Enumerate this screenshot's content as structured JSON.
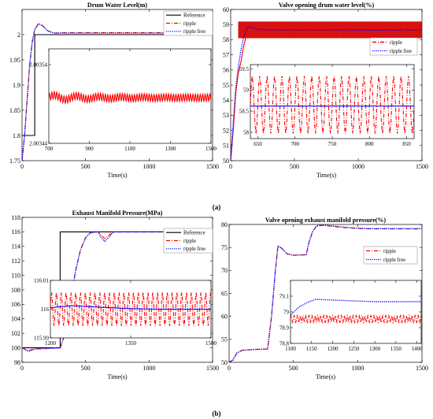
{
  "colors": {
    "reference": "#000000",
    "ripple": "#ff0000",
    "ripple_free": "#0000ff",
    "axis": "#000000"
  },
  "captions": {
    "a": "(a)",
    "b": "(b)"
  },
  "chart_data": [
    {
      "id": "a1",
      "type": "line",
      "title": "Drum Water Level(m)",
      "xlabel": "Time(s)",
      "ylabel": "",
      "xlim": [
        0,
        1500
      ],
      "ylim": [
        1.75,
        2.05
      ],
      "xticks": [
        0,
        500,
        1000,
        1500
      ],
      "yticks": [
        1.75,
        1.8,
        1.85,
        1.9,
        1.95,
        2.0
      ],
      "legend_position": "top-right",
      "series": [
        {
          "name": "Reference",
          "color_key": "reference",
          "style": "solid",
          "points": [
            [
              0,
              1.8
            ],
            [
              100,
              1.8
            ],
            [
              100,
              2.0
            ],
            [
              1500,
              2.0
            ]
          ]
        },
        {
          "name": "ripple",
          "color_key": "ripple",
          "style": "dashdot",
          "points": [
            [
              0,
              1.75
            ],
            [
              20,
              1.8
            ],
            [
              40,
              1.87
            ],
            [
              60,
              1.94
            ],
            [
              80,
              1.985
            ],
            [
              100,
              2.01
            ],
            [
              130,
              2.022
            ],
            [
              160,
              2.018
            ],
            [
              200,
              2.008
            ],
            [
              250,
              2.003
            ],
            [
              300,
              2.004
            ],
            [
              400,
              2.004
            ],
            [
              600,
              2.004
            ],
            [
              800,
              2.004
            ],
            [
              1000,
              2.004
            ],
            [
              1500,
              2.004
            ]
          ]
        },
        {
          "name": "ripple free",
          "color_key": "ripple_free",
          "style": "dotted",
          "points": [
            [
              0,
              1.75
            ],
            [
              20,
              1.8
            ],
            [
              40,
              1.87
            ],
            [
              60,
              1.94
            ],
            [
              80,
              1.985
            ],
            [
              100,
              2.01
            ],
            [
              130,
              2.022
            ],
            [
              160,
              2.018
            ],
            [
              200,
              2.008
            ],
            [
              250,
              2.003
            ],
            [
              300,
              2.003
            ],
            [
              400,
              2.003
            ],
            [
              600,
              2.003
            ],
            [
              800,
              2.003
            ],
            [
              1000,
              2.003
            ],
            [
              1500,
              2.003
            ]
          ]
        }
      ],
      "inset": {
        "xlim": [
          700,
          1500
        ],
        "ylim": [
          2.00344,
          2.00356
        ],
        "xticks": [
          700,
          900,
          1100,
          1300,
          1500
        ],
        "yticks": [
          2.00344,
          2.00354
        ],
        "yticklabels": [
          "2.00344",
          "2.00354"
        ],
        "series": [
          {
            "name": "ripple",
            "color_key": "ripple",
            "style": "solid",
            "ripple": {
              "x0": 700,
              "x1": 1500,
              "base": 2.003498,
              "amplitude": 4.5e-06,
              "period": 12,
              "decay_amp": 3.5e-06,
              "decay_period": 110,
              "decay_tau": 280
            }
          }
        ]
      }
    },
    {
      "id": "a2",
      "type": "line",
      "title": "Valve opening drum water level(%)",
      "xlabel": "Time(s)",
      "ylabel": "",
      "xlim": [
        0,
        1500
      ],
      "ylim": [
        50,
        60
      ],
      "xticks": [
        0,
        500,
        1000,
        1500
      ],
      "yticks": [
        50,
        51,
        52,
        53,
        54,
        55,
        56,
        57,
        58,
        59,
        60
      ],
      "legend_position": "top-right",
      "series": [
        {
          "name": "ripple",
          "color_key": "ripple",
          "style": "band",
          "points": [
            [
              0,
              50
            ],
            [
              20,
              52
            ],
            [
              40,
              54.5
            ],
            [
              60,
              55.8
            ],
            [
              80,
              56.5
            ],
            [
              100,
              57.5
            ],
            [
              120,
              58.2
            ],
            [
              140,
              58.7
            ],
            [
              1500,
              58.7
            ]
          ],
          "band": {
            "x0": 60,
            "x1": 1500,
            "lo": 58.1,
            "hi": 59.2
          }
        },
        {
          "name": "ripple free",
          "color_key": "ripple_free",
          "style": "dotted",
          "points": [
            [
              0,
              50
            ],
            [
              20,
              52.5
            ],
            [
              40,
              54.8
            ],
            [
              60,
              56.2
            ],
            [
              80,
              57.3
            ],
            [
              100,
              58.1
            ],
            [
              130,
              58.8
            ],
            [
              160,
              58.85
            ],
            [
              200,
              58.7
            ],
            [
              300,
              58.65
            ],
            [
              1500,
              58.65
            ]
          ]
        }
      ],
      "inset": {
        "xlim": [
          640,
          860
        ],
        "ylim": [
          57.85,
          59.6
        ],
        "xticks": [
          650,
          700,
          750,
          800,
          850
        ],
        "yticks": [
          58,
          58.5,
          59,
          59.5
        ],
        "yticklabels": [
          "58",
          "58.5",
          "59",
          "59.5"
        ],
        "series": [
          {
            "name": "ripple",
            "color_key": "ripple",
            "style": "dashdot",
            "ripple": {
              "x0": 640,
              "x1": 860,
              "base": 58.65,
              "amplitude": 0.68,
              "period": 10,
              "decay_amp": 0,
              "decay_period": 1,
              "decay_tau": 1
            }
          },
          {
            "name": "ripple free",
            "color_key": "ripple_free",
            "style": "solid",
            "points": [
              [
                640,
                58.62
              ],
              [
                860,
                58.62
              ]
            ]
          }
        ]
      }
    },
    {
      "id": "b1",
      "type": "line",
      "title": "Exhaust Manifold Pressure(MPa)",
      "xlabel": "Time(s)",
      "ylabel": "",
      "xlim": [
        0,
        1500
      ],
      "ylim": [
        98,
        118
      ],
      "xticks": [
        0,
        500,
        1000,
        1500
      ],
      "yticks": [
        98,
        100,
        102,
        104,
        106,
        108,
        110,
        112,
        114,
        116,
        118
      ],
      "legend_position": "top-right",
      "series": [
        {
          "name": "Reference",
          "color_key": "reference",
          "style": "solid",
          "points": [
            [
              0,
              100
            ],
            [
              300,
              100
            ],
            [
              300,
              116
            ],
            [
              1500,
              116
            ]
          ]
        },
        {
          "name": "ripple",
          "color_key": "ripple",
          "style": "dashdot",
          "points": [
            [
              0,
              100
            ],
            [
              50,
              99.6
            ],
            [
              100,
              99.9
            ],
            [
              300,
              100
            ],
            [
              340,
              102
            ],
            [
              380,
              106
            ],
            [
              420,
              110.5
            ],
            [
              460,
              113.5
            ],
            [
              500,
              115.2
            ],
            [
              540,
              115.9
            ],
            [
              600,
              116
            ],
            [
              620,
              115.6
            ],
            [
              650,
              115.1
            ],
            [
              680,
              115.5
            ],
            [
              720,
              116
            ],
            [
              1500,
              116
            ]
          ]
        },
        {
          "name": "ripple free",
          "color_key": "ripple_free",
          "style": "dotted",
          "points": [
            [
              0,
              100
            ],
            [
              50,
              99.5
            ],
            [
              100,
              99.8
            ],
            [
              300,
              100
            ],
            [
              340,
              102
            ],
            [
              380,
              106
            ],
            [
              420,
              110.5
            ],
            [
              460,
              113.5
            ],
            [
              500,
              115.2
            ],
            [
              540,
              115.9
            ],
            [
              600,
              116
            ],
            [
              620,
              115.3
            ],
            [
              650,
              114.7
            ],
            [
              680,
              115.2
            ],
            [
              720,
              116
            ],
            [
              1500,
              116
            ]
          ]
        }
      ],
      "inset": {
        "xlim": [
          1200,
          1500
        ],
        "ylim": [
          115.99,
          116.01
        ],
        "xticks": [
          1200,
          1350,
          1500
        ],
        "yticks": [
          115.99,
          116,
          116.01
        ],
        "yticklabels": [
          "115.99",
          "116",
          "116.01"
        ],
        "series": [
          {
            "name": "ripple",
            "color_key": "ripple",
            "style": "dashdot",
            "ripple": {
              "x0": 1200,
              "x1": 1500,
              "base": 116.0,
              "amplitude": 0.0058,
              "period": 9,
              "decay_amp": 0,
              "decay_period": 1,
              "decay_tau": 1
            }
          },
          {
            "name": "ripple free",
            "color_key": "ripple_free",
            "style": "solid",
            "points": [
              [
                1200,
                116.0005
              ],
              [
                1240,
                116.0012
              ],
              [
                1300,
                116.0006
              ],
              [
                1350,
                116.0002
              ],
              [
                1400,
                116.0
              ],
              [
                1500,
                116.0
              ]
            ]
          }
        ]
      }
    },
    {
      "id": "b2",
      "type": "line",
      "title": "Valve opening exhaust manifold pressure(%)",
      "xlabel": "Time(s)",
      "ylabel": "",
      "xlim": [
        0,
        1500
      ],
      "ylim": [
        50,
        80
      ],
      "xticks": [
        0,
        500,
        1000,
        1500
      ],
      "yticks": [
        50,
        55,
        60,
        65,
        70,
        75,
        80
      ],
      "legend_position": "top-right",
      "series": [
        {
          "name": "ripple",
          "color_key": "ripple",
          "style": "dashdot",
          "points": [
            [
              0,
              50
            ],
            [
              30,
              50.5
            ],
            [
              60,
              52
            ],
            [
              100,
              52.6
            ],
            [
              200,
              52.8
            ],
            [
              300,
              52.9
            ],
            [
              330,
              60
            ],
            [
              360,
              70
            ],
            [
              380,
              75.3
            ],
            [
              410,
              74.8
            ],
            [
              450,
              73.6
            ],
            [
              500,
              73.3
            ],
            [
              600,
              73.4
            ],
            [
              620,
              76
            ],
            [
              650,
              78.5
            ],
            [
              680,
              79.6
            ],
            [
              720,
              79.8
            ],
            [
              800,
              79.6
            ],
            [
              900,
              79.3
            ],
            [
              1000,
              79.1
            ],
            [
              1100,
              79.05
            ],
            [
              1500,
              79.0
            ]
          ]
        },
        {
          "name": "ripple free",
          "color_key": "ripple_free",
          "style": "dotted",
          "points": [
            [
              0,
              50
            ],
            [
              30,
              50.5
            ],
            [
              60,
              52
            ],
            [
              100,
              52.6
            ],
            [
              200,
              52.8
            ],
            [
              300,
              52.9
            ],
            [
              330,
              60
            ],
            [
              360,
              70
            ],
            [
              380,
              75.3
            ],
            [
              410,
              74.8
            ],
            [
              450,
              73.6
            ],
            [
              500,
              73.3
            ],
            [
              600,
              73.4
            ],
            [
              620,
              76
            ],
            [
              650,
              78.5
            ],
            [
              680,
              79.7
            ],
            [
              720,
              79.9
            ],
            [
              800,
              79.7
            ],
            [
              900,
              79.4
            ],
            [
              1000,
              79.2
            ],
            [
              1100,
              79.1
            ],
            [
              1500,
              79.1
            ]
          ]
        }
      ],
      "inset": {
        "xlim": [
          1100,
          1410
        ],
        "ylim": [
          78.8,
          79.2
        ],
        "xticks": [
          1100,
          1150,
          1200,
          1250,
          1300,
          1350,
          1400
        ],
        "yticks": [
          78.8,
          78.9,
          79,
          79.1
        ],
        "yticklabels": [
          "78.8",
          "78.9",
          "79",
          "79.1"
        ],
        "series": [
          {
            "name": "ripple",
            "color_key": "ripple",
            "style": "dashdot",
            "ripple": {
              "x0": 1100,
              "x1": 1410,
              "base": 78.955,
              "amplitude": 0.022,
              "period": 7,
              "decay_amp": 0,
              "decay_period": 1,
              "decay_tau": 1
            }
          },
          {
            "name": "ripple free",
            "color_key": "ripple_free",
            "style": "dotted",
            "points": [
              [
                1100,
                78.98
              ],
              [
                1120,
                79.03
              ],
              [
                1140,
                79.06
              ],
              [
                1160,
                79.08
              ],
              [
                1200,
                79.075
              ],
              [
                1250,
                79.07
              ],
              [
                1300,
                79.065
              ],
              [
                1410,
                79.065
              ]
            ]
          }
        ]
      }
    }
  ]
}
